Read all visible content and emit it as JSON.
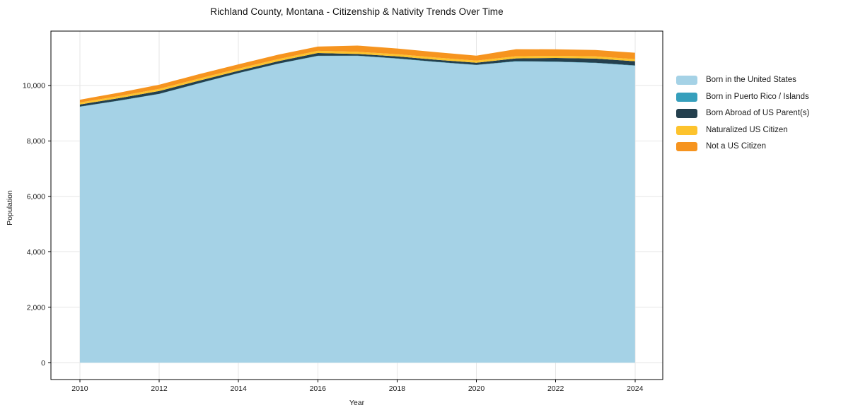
{
  "title": "Richland County, Montana - Citizenship & Nativity Trends Over Time",
  "chart_data": {
    "type": "area",
    "stacked": true,
    "title": "Richland County, Montana - Citizenship & Nativity Trends Over Time",
    "xlabel": "Year",
    "ylabel": "Population",
    "x": [
      2010,
      2011,
      2012,
      2013,
      2014,
      2015,
      2016,
      2017,
      2018,
      2019,
      2020,
      2021,
      2022,
      2023,
      2024
    ],
    "xlim": [
      2009.27,
      2024.7
    ],
    "ylim": [
      -610,
      11960
    ],
    "xticks": [
      2010,
      2012,
      2014,
      2016,
      2018,
      2020,
      2022,
      2024
    ],
    "xtick_labels": [
      "2010",
      "2012",
      "2014",
      "2016",
      "2018",
      "2020",
      "2022",
      "2024"
    ],
    "yticks": [
      0,
      2000,
      4000,
      6000,
      8000,
      10000
    ],
    "ytick_labels": [
      "0",
      "2,000",
      "4,000",
      "6,000",
      "8,000",
      "10,000"
    ],
    "grid": true,
    "grid_color": "#e6e6e6",
    "legend_position": "right",
    "series": [
      {
        "name": "Born in the United States",
        "color": "#a5d2e6",
        "values": [
          9230,
          9450,
          9690,
          10070,
          10440,
          10780,
          11060,
          11065,
          10965,
          10840,
          10735,
          10865,
          10850,
          10810,
          10710
        ]
      },
      {
        "name": "Born in Puerto Rico / Islands",
        "color": "#369fbc",
        "values": [
          8,
          8,
          8,
          8,
          8,
          8,
          10,
          10,
          10,
          10,
          8,
          10,
          10,
          10,
          12
        ]
      },
      {
        "name": "Born Abroad of US Parent(s)",
        "color": "#24404e",
        "values": [
          75,
          85,
          100,
          90,
          80,
          85,
          100,
          60,
          75,
          75,
          75,
          100,
          130,
          150,
          150
        ]
      },
      {
        "name": "Naturalized US Citizen",
        "color": "#fdc32d",
        "values": [
          72,
          75,
          78,
          78,
          78,
          78,
          78,
          78,
          78,
          78,
          78,
          78,
          78,
          78,
          78
        ]
      },
      {
        "name": "Not a US Citizen",
        "color": "#f6941f",
        "values": [
          100,
          125,
          150,
          158,
          155,
          158,
          155,
          225,
          205,
          195,
          178,
          255,
          235,
          230,
          228
        ]
      }
    ]
  }
}
